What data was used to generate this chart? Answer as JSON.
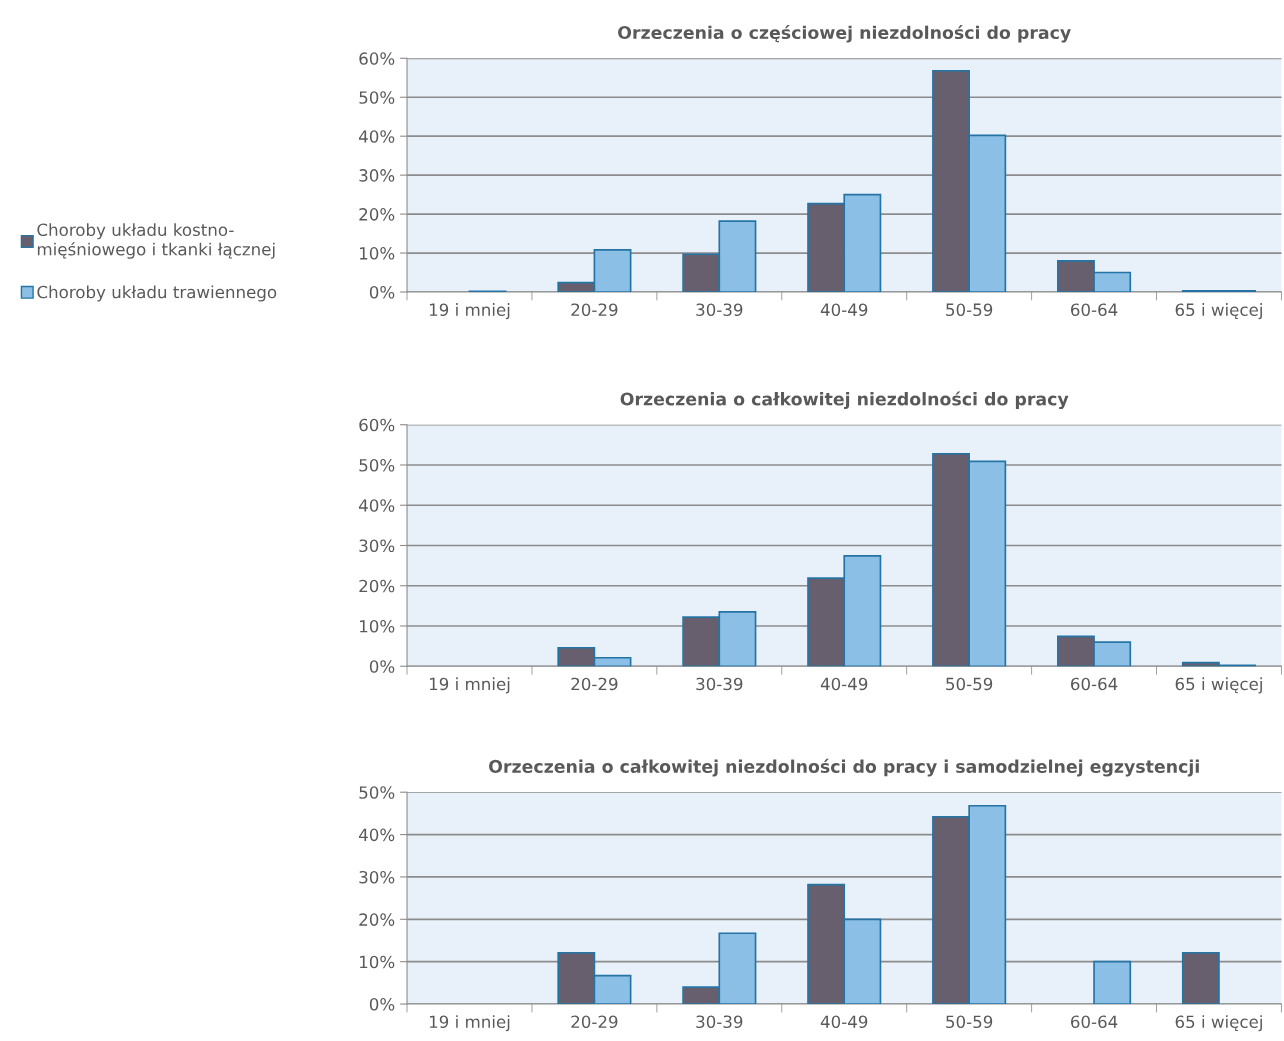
{
  "chart_data": [
    {
      "type": "bar",
      "title": "Orzeczenia o częściowej niezdolności do pracy",
      "categories": [
        "19 i mniej",
        "20-29",
        "30-39",
        "40-49",
        "50-59",
        "60-64",
        "65 i więcej"
      ],
      "series": [
        {
          "name": "Choroby układu kostno-\nmięśniowego i tkanki łącznej",
          "color": "#675f6d",
          "values": [
            null,
            2.4,
            9.7,
            22.7,
            56.8,
            8.0,
            0.3
          ]
        },
        {
          "name": "Choroby układu trawiennego",
          "color": "#8bbfe6",
          "values": [
            0.2,
            10.8,
            18.2,
            25.0,
            40.2,
            5.0,
            0.3
          ]
        }
      ],
      "ylim": [
        0,
        60
      ],
      "yticks": [
        {
          "value": 0,
          "label": "0%"
        },
        {
          "value": 10,
          "label": "10%"
        },
        {
          "value": 20,
          "label": "20%"
        },
        {
          "value": 30,
          "label": "30%"
        },
        {
          "value": 40,
          "label": "40%"
        },
        {
          "value": 50,
          "label": "50%"
        },
        {
          "value": 60,
          "label": "60%"
        }
      ],
      "grid": "y",
      "legend": "left"
    },
    {
      "type": "bar",
      "title": "Orzeczenia o całkowitej niezdolności do pracy",
      "categories": [
        "19 i mniej",
        "20-29",
        "30-39",
        "40-49",
        "50-59",
        "60-64",
        "65 i więcej"
      ],
      "series": [
        {
          "color": "#675f6d",
          "values": [
            null,
            4.6,
            12.2,
            21.9,
            52.8,
            7.4,
            0.9
          ]
        },
        {
          "color": "#8bbfe6",
          "values": [
            null,
            2.1,
            13.5,
            27.4,
            50.9,
            6.0,
            0.2
          ]
        }
      ],
      "ylim": [
        0,
        60
      ],
      "yticks": [
        {
          "value": 0,
          "label": "0%"
        },
        {
          "value": 10,
          "label": "10%"
        },
        {
          "value": 20,
          "label": "20%"
        },
        {
          "value": 30,
          "label": "30%"
        },
        {
          "value": 40,
          "label": "40%"
        },
        {
          "value": 50,
          "label": "50%"
        },
        {
          "value": 60,
          "label": "60%"
        }
      ],
      "grid": "y"
    },
    {
      "type": "bar",
      "title": "Orzeczenia o całkowitej niezdolności do pracy i samodzielnej egzystencji",
      "categories": [
        "19 i mniej",
        "20-29",
        "30-39",
        "40-49",
        "50-59",
        "60-64",
        "65 i więcej"
      ],
      "series": [
        {
          "color": "#675f6d",
          "values": [
            null,
            12.1,
            4.0,
            28.2,
            44.2,
            null,
            12.1
          ]
        },
        {
          "color": "#8bbfe6",
          "values": [
            null,
            6.7,
            16.7,
            20.0,
            46.8,
            10.0,
            null
          ]
        }
      ],
      "ylim": [
        0,
        50
      ],
      "yticks": [
        {
          "value": 0,
          "label": "0%"
        },
        {
          "value": 10,
          "label": "10%"
        },
        {
          "value": 20,
          "label": "20%"
        },
        {
          "value": 30,
          "label": "30%"
        },
        {
          "value": 40,
          "label": "40%"
        },
        {
          "value": 50,
          "label": "50%"
        }
      ],
      "grid": "y"
    }
  ]
}
